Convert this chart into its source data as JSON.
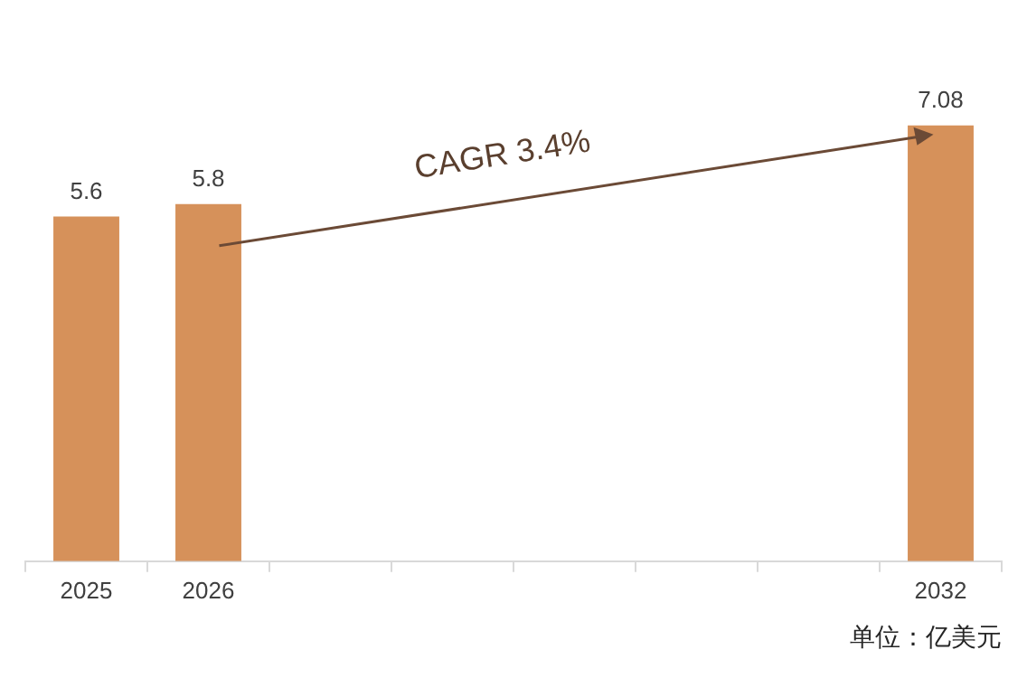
{
  "chart_data": {
    "type": "bar",
    "categories": [
      "2025",
      "2026",
      null,
      null,
      null,
      null,
      null,
      "2032"
    ],
    "values": [
      5.6,
      5.8,
      null,
      null,
      null,
      null,
      null,
      7.08
    ],
    "color": "#d6915a",
    "data_labels": true,
    "grid": false,
    "legend": false,
    "tick_labels": "x",
    "annotations": [
      "CAGR 3.4%",
      "单位：亿美元"
    ]
  }
}
